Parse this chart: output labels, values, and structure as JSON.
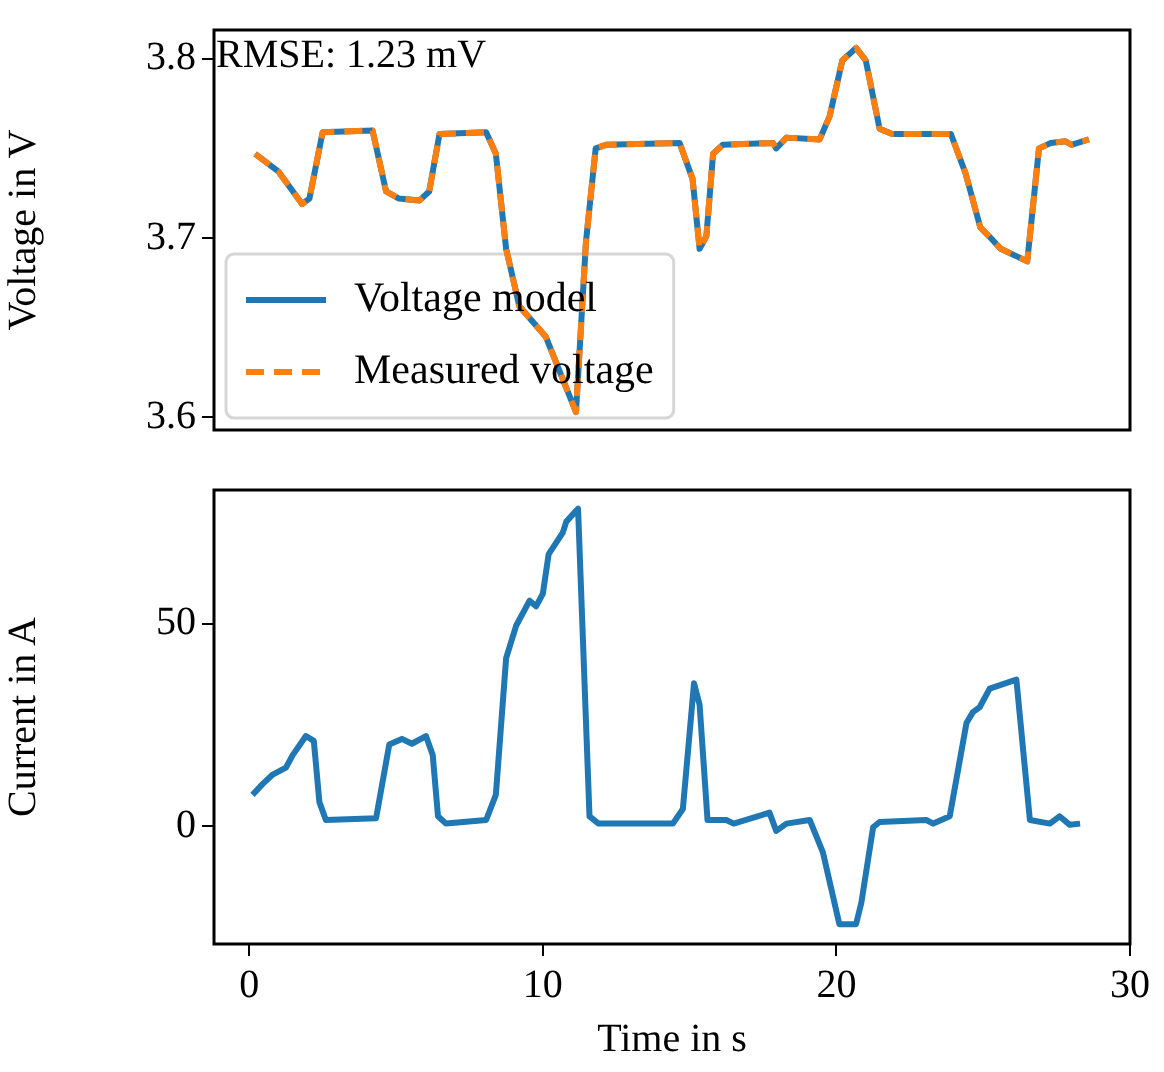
{
  "chart_data": [
    {
      "type": "line",
      "ylabel": "Voltage in V",
      "xlim": [
        -1.2,
        30
      ],
      "ylim": [
        3.593,
        3.816
      ],
      "yticks": [
        3.6,
        3.7,
        3.8
      ],
      "tick_labels": "y",
      "grid": false,
      "legend": "lower left",
      "marker": "none",
      "annotations": [
        "RMSE: 1.23 mV"
      ],
      "x": [
        0.2,
        1.0,
        1.8,
        2.05,
        2.5,
        4.2,
        4.66,
        5.1,
        5.8,
        6.13,
        6.48,
        8.07,
        8.4,
        8.75,
        9.2,
        10.1,
        11.13,
        11.47,
        11.8,
        12.15,
        14.66,
        15.1,
        15.34,
        15.57,
        15.8,
        16.13,
        17.84,
        17.95,
        18.3,
        19.43,
        19.77,
        20.2,
        20.67,
        21.0,
        21.47,
        21.9,
        23.5,
        23.9,
        24.4,
        24.9,
        25.2,
        25.6,
        26.5,
        26.9,
        27.3,
        27.8,
        28.0,
        28.6
      ],
      "series": [
        {
          "name": "Voltage model",
          "color": "#1f77b4",
          "line_style": "solid",
          "values": [
            3.747,
            3.737,
            3.719,
            3.722,
            3.759,
            3.76,
            3.726,
            3.722,
            3.721,
            3.726,
            3.758,
            3.759,
            3.747,
            3.694,
            3.662,
            3.645,
            3.603,
            3.698,
            3.75,
            3.752,
            3.753,
            3.733,
            3.694,
            3.701,
            3.747,
            3.752,
            3.753,
            3.75,
            3.756,
            3.755,
            3.768,
            3.799,
            3.806,
            3.799,
            3.761,
            3.758,
            3.758,
            3.758,
            3.736,
            3.706,
            3.701,
            3.694,
            3.687,
            3.75,
            3.753,
            3.754,
            3.752,
            3.755
          ]
        },
        {
          "name": "Measured voltage",
          "color": "#ff7f0e",
          "line_style": "dashed",
          "values": [
            3.747,
            3.737,
            3.719,
            3.722,
            3.759,
            3.76,
            3.726,
            3.722,
            3.721,
            3.726,
            3.758,
            3.759,
            3.747,
            3.694,
            3.662,
            3.645,
            3.603,
            3.698,
            3.75,
            3.752,
            3.753,
            3.733,
            3.694,
            3.701,
            3.747,
            3.752,
            3.753,
            3.75,
            3.756,
            3.755,
            3.768,
            3.799,
            3.806,
            3.799,
            3.761,
            3.758,
            3.758,
            3.758,
            3.736,
            3.706,
            3.701,
            3.694,
            3.687,
            3.75,
            3.753,
            3.754,
            3.752,
            3.755
          ]
        }
      ]
    },
    {
      "type": "line",
      "xlabel": "Time in s",
      "ylabel": "Current in A",
      "xlim": [
        -1.2,
        30
      ],
      "xticks": [
        0,
        10,
        20,
        30
      ],
      "ylim": [
        -29,
        83
      ],
      "yticks": [
        0,
        50
      ],
      "grid": false,
      "marker": "none",
      "x": [
        0.11,
        0.46,
        0.8,
        1.25,
        1.48,
        1.93,
        2.2,
        2.39,
        2.61,
        4.32,
        4.77,
        5.2,
        5.54,
        6.02,
        6.25,
        6.43,
        6.7,
        8.07,
        8.4,
        8.75,
        9.09,
        9.55,
        9.77,
        10.0,
        10.2,
        10.68,
        10.8,
        11.2,
        11.59,
        11.9,
        14.43,
        14.77,
        15.15,
        15.34,
        15.61,
        16.25,
        16.5,
        17.72,
        17.95,
        18.3,
        19.09,
        19.54,
        20.1,
        20.67,
        20.85,
        21.25,
        21.47,
        23.06,
        23.3,
        23.86,
        24.43,
        24.65,
        24.88,
        25.22,
        26.13,
        26.59,
        27.27,
        27.6,
        27.95,
        28.3
      ],
      "series": [
        {
          "color": "#1f77b4",
          "line_style": "solid",
          "values": [
            7.8,
            10.5,
            12.8,
            14.5,
            17.6,
            22.3,
            21.1,
            6.0,
            1.6,
            2.0,
            20.2,
            21.6,
            20.4,
            22.3,
            17.6,
            2.5,
            0.7,
            1.6,
            7.8,
            41.5,
            49.5,
            55.7,
            54.3,
            57.4,
            67.2,
            72.5,
            75.2,
            78.4,
            2.5,
            0.7,
            0.7,
            4.3,
            35.3,
            30.0,
            1.6,
            1.6,
            0.7,
            3.4,
            -1.1,
            0.7,
            1.6,
            -6.4,
            -24.1,
            -24.1,
            -18.8,
            -0.2,
            1.1,
            1.6,
            0.7,
            2.5,
            25.5,
            28.2,
            29.4,
            34.0,
            36.2,
            1.6,
            0.7,
            2.5,
            0.4,
            0.7
          ]
        }
      ]
    }
  ]
}
